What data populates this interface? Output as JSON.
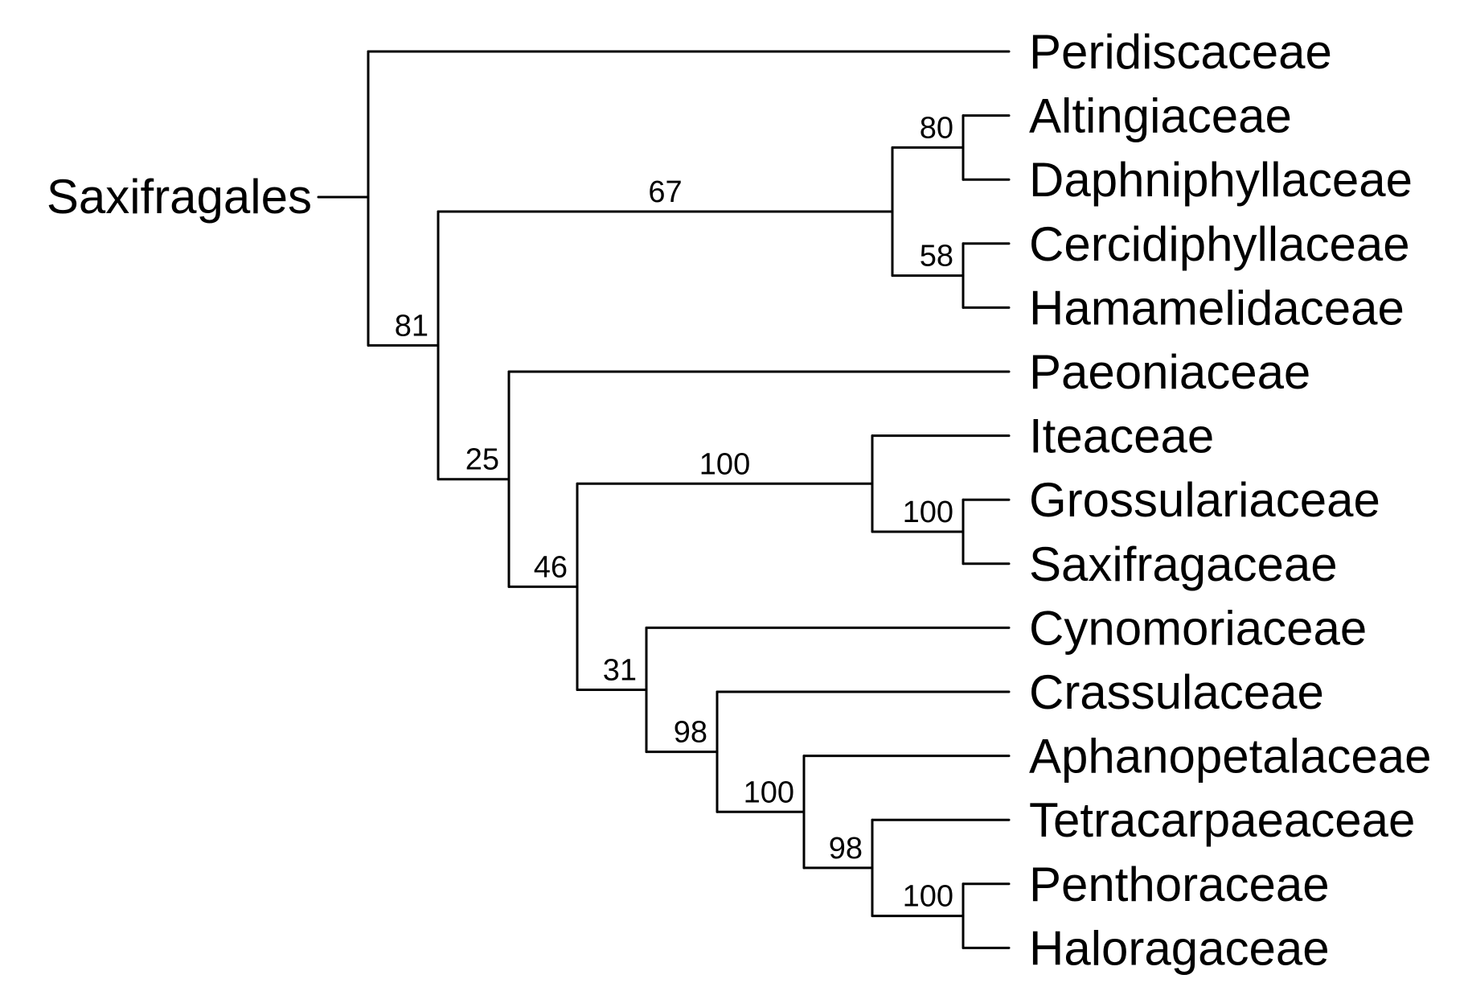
{
  "root": {
    "label": "Saxifragales"
  },
  "taxa": [
    "Peridiscaceae",
    "Altingiaceae",
    "Daphniphyllaceae",
    "Cercidiphyllaceae",
    "Hamamelidaceae",
    "Paeoniaceae",
    "Iteaceae",
    "Grossulariaceae",
    "Saxifragaceae",
    "Cynomoriaceae",
    "Crassulaceae",
    "Aphanopetalaceae",
    "Tetracarpaeaceae",
    "Penthoraceae",
    "Haloragaceae"
  ],
  "tree": {
    "children": [
      {
        "taxon": 0
      },
      {
        "support": "81",
        "children": [
          {
            "support": "67",
            "children": [
              {
                "support": "80",
                "children": [
                  {
                    "taxon": 1
                  },
                  {
                    "taxon": 2
                  }
                ]
              },
              {
                "support": "58",
                "children": [
                  {
                    "taxon": 3
                  },
                  {
                    "taxon": 4
                  }
                ]
              }
            ]
          },
          {
            "support": "25",
            "children": [
              {
                "taxon": 5
              },
              {
                "support": "46",
                "children": [
                  {
                    "support": "100",
                    "children": [
                      {
                        "taxon": 6
                      },
                      {
                        "support": "100",
                        "children": [
                          {
                            "taxon": 7
                          },
                          {
                            "taxon": 8
                          }
                        ]
                      }
                    ]
                  },
                  {
                    "support": "31",
                    "children": [
                      {
                        "taxon": 9
                      },
                      {
                        "support": "98",
                        "children": [
                          {
                            "taxon": 10
                          },
                          {
                            "support": "100",
                            "children": [
                              {
                                "taxon": 11
                              },
                              {
                                "support": "98",
                                "children": [
                                  {
                                    "taxon": 12
                                  },
                                  {
                                    "support": "100",
                                    "children": [
                                      {
                                        "taxon": 13
                                      },
                                      {
                                        "taxon": 14
                                      }
                                    ]
                                  }
                                ]
                              }
                            ]
                          }
                        ]
                      }
                    ]
                  }
                ]
              }
            ]
          }
        ]
      }
    ]
  }
}
